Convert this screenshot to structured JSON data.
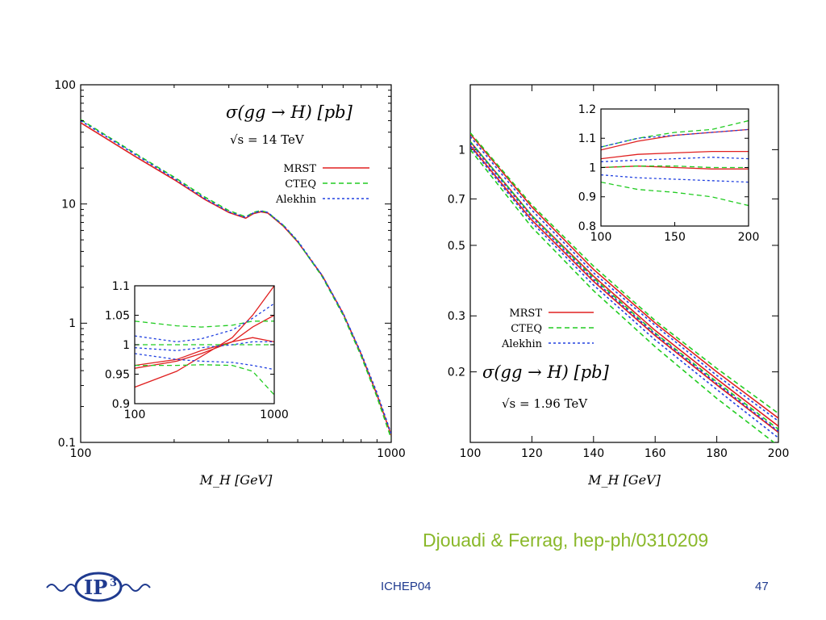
{
  "slide": {
    "citation": "Djouadi & Ferrag, hep-ph/0310209",
    "footer_center": "ICHEP04",
    "page_number": "47",
    "logo_text": "IP3",
    "citation_color": "#8ab82a",
    "footer_color": "#1f3a8f"
  },
  "legend_labels": [
    "MRST",
    "CTEQ",
    "Alekhin"
  ],
  "chart_data": [
    {
      "id": "lhc",
      "type": "line",
      "title": "σ(gg → H) [pb]",
      "subtitle": "√s = 14 TeV",
      "xlabel": "M_H [GeV]",
      "ylabel": "",
      "x_scale": "log",
      "y_scale": "log",
      "xlim": [
        100,
        1000
      ],
      "ylim": [
        0.1,
        100
      ],
      "x_ticks": [
        "100",
        "1000"
      ],
      "y_ticks": [
        "0.1",
        "1",
        "10",
        "100"
      ],
      "legend_position": "top-right",
      "x": [
        100,
        150,
        200,
        250,
        300,
        340,
        360,
        380,
        400,
        450,
        500,
        600,
        700,
        800,
        900,
        1000
      ],
      "series": [
        {
          "name": "MRST",
          "color": "#e02020",
          "dash": "solid",
          "values": [
            48,
            25,
            16,
            11,
            8.5,
            7.6,
            8.3,
            8.6,
            8.4,
            6.5,
            4.8,
            2.5,
            1.2,
            0.55,
            0.25,
            0.115
          ]
        },
        {
          "name": "CTEQ",
          "color": "#22cc22",
          "dash": "dashed",
          "values": [
            51,
            26.5,
            16.8,
            11.5,
            8.8,
            7.8,
            8.5,
            8.8,
            8.5,
            6.6,
            4.85,
            2.45,
            1.17,
            0.53,
            0.24,
            0.108
          ]
        },
        {
          "name": "Alekhin",
          "color": "#2040e0",
          "dash": "dotted",
          "values": [
            50,
            26,
            16.4,
            11.2,
            8.6,
            7.7,
            8.4,
            8.7,
            8.5,
            6.6,
            4.9,
            2.5,
            1.21,
            0.56,
            0.26,
            0.118
          ]
        }
      ],
      "inset": {
        "x_scale": "log",
        "xlim": [
          100,
          1000
        ],
        "ylim": [
          0.9,
          1.1
        ],
        "x_ticks": [
          "100",
          "1000"
        ],
        "y_ticks": [
          "0.9",
          "0.95",
          "1",
          "1.05",
          "1.1"
        ],
        "x": [
          100,
          200,
          300,
          500,
          700,
          1000
        ],
        "series": [
          {
            "name": "MRST",
            "color": "#e02020",
            "dash": "solid",
            "values": [
              0.928,
              0.955,
              0.98,
              1.012,
              1.05,
              1.1
            ]
          },
          {
            "name": "MRST",
            "color": "#e02020",
            "dash": "solid",
            "values": [
              0.965,
              0.975,
              0.99,
              1.005,
              1.012,
              1.005
            ]
          },
          {
            "name": "MRST",
            "color": "#e02020",
            "dash": "solid",
            "values": [
              0.96,
              0.972,
              0.985,
              1.005,
              1.03,
              1.05
            ]
          },
          {
            "name": "CTEQ",
            "color": "#22cc22",
            "dash": "dashed",
            "values": [
              1.04,
              1.032,
              1.03,
              1.033,
              1.04,
              1.04
            ]
          },
          {
            "name": "CTEQ",
            "color": "#22cc22",
            "dash": "dashed",
            "values": [
              1.0,
              1.0,
              1.0,
              1.0,
              1.0,
              1.0
            ]
          },
          {
            "name": "CTEQ",
            "color": "#22cc22",
            "dash": "dashed",
            "values": [
              0.965,
              0.965,
              0.966,
              0.965,
              0.955,
              0.915
            ]
          },
          {
            "name": "Alekhin",
            "color": "#2040e0",
            "dash": "dotted",
            "values": [
              1.015,
              1.005,
              1.01,
              1.025,
              1.045,
              1.07
            ]
          },
          {
            "name": "Alekhin",
            "color": "#2040e0",
            "dash": "dotted",
            "values": [
              0.995,
              0.99,
              0.995,
              1.0,
              1.005,
              1.005
            ]
          },
          {
            "name": "Alekhin",
            "color": "#2040e0",
            "dash": "dotted",
            "values": [
              0.985,
              0.975,
              0.972,
              0.97,
              0.965,
              0.958
            ]
          }
        ]
      }
    },
    {
      "id": "tevatron",
      "type": "line",
      "title": "σ(gg → H) [pb]",
      "subtitle": "√s = 1.96 TeV",
      "xlabel": "M_H [GeV]",
      "ylabel": "",
      "x_scale": "linear",
      "y_scale": "log",
      "xlim": [
        100,
        200
      ],
      "ylim": [
        0.12,
        1.6
      ],
      "x_ticks": [
        "100",
        "120",
        "140",
        "160",
        "180",
        "200"
      ],
      "y_ticks": [
        "0.2",
        "0.3",
        "0.5",
        "0.7",
        "1"
      ],
      "legend_position": "middle-left",
      "x": [
        100,
        120,
        140,
        160,
        180,
        200
      ],
      "series": [
        {
          "name": "MRST",
          "color": "#e02020",
          "dash": "solid",
          "values": [
            1.06,
            0.62,
            0.4,
            0.27,
            0.19,
            0.135
          ]
        },
        {
          "name": "MRST",
          "color": "#e02020",
          "dash": "solid",
          "values": [
            1.12,
            0.66,
            0.42,
            0.285,
            0.2,
            0.143
          ]
        },
        {
          "name": "MRST",
          "color": "#e02020",
          "dash": "solid",
          "values": [
            1.03,
            0.6,
            0.385,
            0.26,
            0.182,
            0.129
          ]
        },
        {
          "name": "CTEQ",
          "color": "#22cc22",
          "dash": "dashed",
          "values": [
            1.13,
            0.67,
            0.43,
            0.29,
            0.205,
            0.148
          ]
        },
        {
          "name": "CTEQ",
          "color": "#22cc22",
          "dash": "dashed",
          "values": [
            1.06,
            0.62,
            0.395,
            0.265,
            0.186,
            0.132
          ]
        },
        {
          "name": "CTEQ",
          "color": "#22cc22",
          "dash": "dashed",
          "values": [
            1.0,
            0.57,
            0.36,
            0.24,
            0.165,
            0.117
          ]
        },
        {
          "name": "Alekhin",
          "color": "#2040e0",
          "dash": "dotted",
          "values": [
            1.1,
            0.645,
            0.41,
            0.28,
            0.195,
            0.14
          ]
        },
        {
          "name": "Alekhin",
          "color": "#2040e0",
          "dash": "dotted",
          "values": [
            1.05,
            0.612,
            0.39,
            0.263,
            0.184,
            0.13
          ]
        },
        {
          "name": "Alekhin",
          "color": "#2040e0",
          "dash": "dotted",
          "values": [
            1.02,
            0.59,
            0.375,
            0.252,
            0.176,
            0.124
          ]
        }
      ],
      "inset": {
        "x_scale": "linear",
        "xlim": [
          100,
          200
        ],
        "ylim": [
          0.8,
          1.2
        ],
        "x_ticks": [
          "100",
          "150",
          "200"
        ],
        "y_ticks": [
          "0.8",
          "0.9",
          "1",
          "1.1",
          "1.2"
        ],
        "x": [
          100,
          125,
          150,
          175,
          200
        ],
        "series": [
          {
            "name": "MRST",
            "color": "#e02020",
            "dash": "solid",
            "values": [
              1.06,
              1.09,
              1.11,
              1.12,
              1.13
            ]
          },
          {
            "name": "MRST",
            "color": "#e02020",
            "dash": "solid",
            "values": [
              1.03,
              1.045,
              1.05,
              1.055,
              1.055
            ]
          },
          {
            "name": "MRST",
            "color": "#e02020",
            "dash": "solid",
            "values": [
              1.0,
              1.005,
              1.0,
              0.995,
              0.995
            ]
          },
          {
            "name": "CTEQ",
            "color": "#22cc22",
            "dash": "dashed",
            "values": [
              1.07,
              1.1,
              1.12,
              1.13,
              1.16
            ]
          },
          {
            "name": "CTEQ",
            "color": "#22cc22",
            "dash": "dashed",
            "values": [
              1.0,
              1.005,
              1.005,
              1.0,
              1.0
            ]
          },
          {
            "name": "CTEQ",
            "color": "#22cc22",
            "dash": "dashed",
            "values": [
              0.95,
              0.925,
              0.915,
              0.9,
              0.87
            ]
          },
          {
            "name": "Alekhin",
            "color": "#2040e0",
            "dash": "dotted",
            "values": [
              1.07,
              1.1,
              1.11,
              1.12,
              1.13
            ]
          },
          {
            "name": "Alekhin",
            "color": "#2040e0",
            "dash": "dotted",
            "values": [
              1.02,
              1.025,
              1.03,
              1.035,
              1.03
            ]
          },
          {
            "name": "Alekhin",
            "color": "#2040e0",
            "dash": "dotted",
            "values": [
              0.975,
              0.965,
              0.96,
              0.955,
              0.95
            ]
          }
        ]
      }
    }
  ]
}
